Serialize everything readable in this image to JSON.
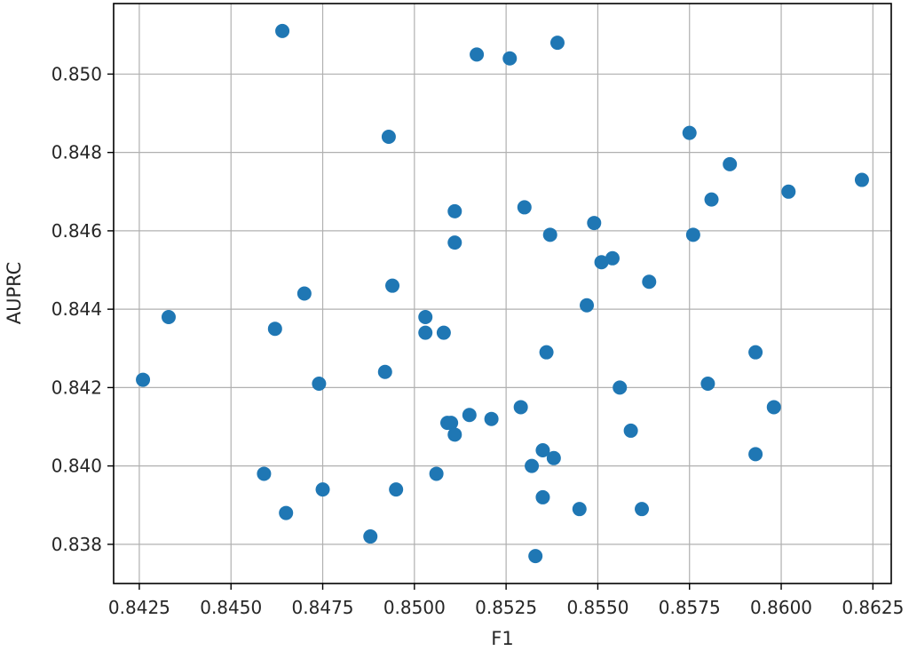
{
  "chart_data": {
    "type": "scatter",
    "xlabel": "F1",
    "ylabel": "AUPRC",
    "xlim": [
      0.8418,
      0.863
    ],
    "ylim": [
      0.837,
      0.8518
    ],
    "xticks": [
      "0.8425",
      "0.8450",
      "0.8475",
      "0.8500",
      "0.8525",
      "0.8550",
      "0.8575",
      "0.8600",
      "0.8625"
    ],
    "yticks": [
      "0.838",
      "0.840",
      "0.842",
      "0.844",
      "0.846",
      "0.848",
      "0.850"
    ],
    "grid": true,
    "marker_color": "#1f77b4",
    "points": [
      [
        0.8426,
        0.8422
      ],
      [
        0.8433,
        0.8438
      ],
      [
        0.8459,
        0.8398
      ],
      [
        0.8462,
        0.8435
      ],
      [
        0.8464,
        0.8511
      ],
      [
        0.8465,
        0.8388
      ],
      [
        0.847,
        0.8444
      ],
      [
        0.8474,
        0.8421
      ],
      [
        0.8475,
        0.8394
      ],
      [
        0.8488,
        0.8382
      ],
      [
        0.8492,
        0.8424
      ],
      [
        0.8493,
        0.8484
      ],
      [
        0.8494,
        0.8446
      ],
      [
        0.8495,
        0.8394
      ],
      [
        0.8503,
        0.8438
      ],
      [
        0.8503,
        0.8434
      ],
      [
        0.8506,
        0.8398
      ],
      [
        0.8508,
        0.8434
      ],
      [
        0.8509,
        0.8411
      ],
      [
        0.851,
        0.8411
      ],
      [
        0.8511,
        0.8408
      ],
      [
        0.8511,
        0.8465
      ],
      [
        0.8511,
        0.8457
      ],
      [
        0.8515,
        0.8413
      ],
      [
        0.8517,
        0.8505
      ],
      [
        0.8521,
        0.8412
      ],
      [
        0.8526,
        0.8504
      ],
      [
        0.8529,
        0.8415
      ],
      [
        0.853,
        0.8466
      ],
      [
        0.8532,
        0.84
      ],
      [
        0.8533,
        0.8377
      ],
      [
        0.8535,
        0.8404
      ],
      [
        0.8535,
        0.8392
      ],
      [
        0.8536,
        0.8429
      ],
      [
        0.8537,
        0.8459
      ],
      [
        0.8538,
        0.8402
      ],
      [
        0.8539,
        0.8508
      ],
      [
        0.8545,
        0.8389
      ],
      [
        0.8547,
        0.8441
      ],
      [
        0.8549,
        0.8462
      ],
      [
        0.8551,
        0.8452
      ],
      [
        0.8554,
        0.8453
      ],
      [
        0.8556,
        0.842
      ],
      [
        0.8559,
        0.8409
      ],
      [
        0.8562,
        0.8389
      ],
      [
        0.8564,
        0.8447
      ],
      [
        0.8575,
        0.8485
      ],
      [
        0.8576,
        0.8459
      ],
      [
        0.858,
        0.8421
      ],
      [
        0.8581,
        0.8468
      ],
      [
        0.8586,
        0.8477
      ],
      [
        0.8593,
        0.8429
      ],
      [
        0.8593,
        0.8403
      ],
      [
        0.8598,
        0.8415
      ],
      [
        0.8602,
        0.847
      ],
      [
        0.8622,
        0.8473
      ]
    ]
  }
}
